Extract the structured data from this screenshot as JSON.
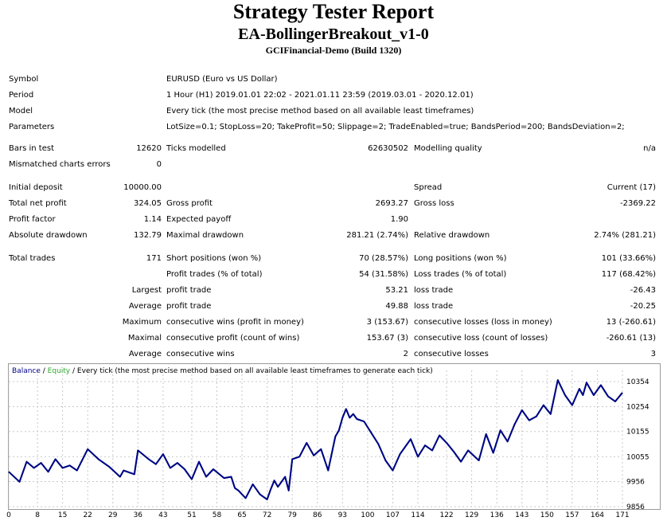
{
  "report": {
    "title": "Strategy Tester Report",
    "subtitle": "EA-BollingerBreakout_v1-0",
    "server": "GCIFinancial-Demo (Build 1320)"
  },
  "info": {
    "symbol_label": "Symbol",
    "symbol_value": "EURUSD (Euro vs US Dollar)",
    "period_label": "Period",
    "period_value": "1 Hour (H1) 2019.01.01 22:02 - 2021.01.11 23:59 (2019.03.01 - 2020.12.01)",
    "model_label": "Model",
    "model_value": "Every tick (the most precise method based on all available least timeframes)",
    "parameters_label": "Parameters",
    "parameters_value": "LotSize=0.1; StopLoss=20; TakeProfit=50; Slippage=2; TradeEnabled=true; BandsPeriod=200; BandsDeviation=2;"
  },
  "stats": {
    "bars_label": "Bars in test",
    "bars_value": "12620",
    "ticks_label": "Ticks modelled",
    "ticks_value": "62630502",
    "quality_label": "Modelling quality",
    "quality_value": "n/a",
    "mismatch_label": "Mismatched charts errors",
    "mismatch_value": "0",
    "deposit_label": "Initial deposit",
    "deposit_value": "10000.00",
    "spread_label": "Spread",
    "spread_value": "Current (17)",
    "net_label": "Total net profit",
    "net_value": "324.05",
    "gross_profit_label": "Gross profit",
    "gross_profit_value": "2693.27",
    "gross_loss_label": "Gross loss",
    "gross_loss_value": "-2369.22",
    "pf_label": "Profit factor",
    "pf_value": "1.14",
    "payoff_label": "Expected payoff",
    "payoff_value": "1.90",
    "abs_dd_label": "Absolute drawdown",
    "abs_dd_value": "132.79",
    "max_dd_label": "Maximal drawdown",
    "max_dd_value": "281.21 (2.74%)",
    "rel_dd_label": "Relative drawdown",
    "rel_dd_value": "2.74% (281.21)",
    "trades_label": "Total trades",
    "trades_value": "171",
    "short_label": "Short positions (won %)",
    "short_value": "70 (28.57%)",
    "long_label": "Long positions (won %)",
    "long_value": "101 (33.66%)",
    "profit_trades_label": "Profit trades (% of total)",
    "profit_trades_value": "54 (31.58%)",
    "loss_trades_label": "Loss trades (% of total)",
    "loss_trades_value": "117 (68.42%)",
    "largest_label": "Largest",
    "largest_profit_label": "profit trade",
    "largest_profit_value": "53.21",
    "largest_loss_label": "loss trade",
    "largest_loss_value": "-26.43",
    "average_label": "Average",
    "average_profit_label": "profit trade",
    "average_profit_value": "49.88",
    "average_loss_label": "loss trade",
    "average_loss_value": "-20.25",
    "maximum_label": "Maximum",
    "max_wins_label": "consecutive wins (profit in money)",
    "max_wins_value": "3 (153.67)",
    "max_losses_label": "consecutive losses (loss in money)",
    "max_losses_value": "13 (-260.61)",
    "maximal_label": "Maximal",
    "maximal_profit_label": "consecutive profit (count of wins)",
    "maximal_profit_value": "153.67 (3)",
    "maximal_loss_label": "consecutive loss (count of losses)",
    "maximal_loss_value": "-260.61 (13)",
    "avg2_label": "Average",
    "avg_wins_label": "consecutive wins",
    "avg_wins_value": "2",
    "avg_losses_label": "consecutive losses",
    "avg_losses_value": "3"
  },
  "chart_data": {
    "type": "line",
    "legend": {
      "balance": "Balance",
      "sep1": " / ",
      "equity": "Equity",
      "sep2": " / ",
      "description": "Every tick (the most precise method based on all available least timeframes to generate each tick)"
    },
    "series": [
      {
        "name": "Balance",
        "color": "#00008b",
        "x": [
          0,
          3,
          5,
          7,
          9,
          11,
          13,
          15,
          17,
          19,
          22,
          25,
          28,
          31,
          32,
          35,
          36,
          39,
          41,
          43,
          45,
          47,
          49,
          51,
          53,
          55,
          57,
          60,
          62,
          63,
          64,
          65,
          66,
          68,
          70,
          72,
          73,
          74,
          75,
          77,
          78,
          79,
          81,
          83,
          85,
          87,
          89,
          91,
          92,
          93,
          94,
          95,
          96,
          97,
          99,
          101,
          103,
          105,
          107,
          109,
          112,
          114,
          116,
          118,
          120,
          122,
          124,
          126,
          128,
          131,
          133,
          135,
          137,
          139,
          141,
          143,
          145,
          147,
          149,
          151,
          153,
          155,
          157,
          159,
          160,
          161,
          163,
          165,
          167,
          169,
          171
        ],
        "values": [
          9995,
          9955,
          10035,
          10010,
          10030,
          9995,
          10045,
          10010,
          10020,
          10000,
          10085,
          10045,
          10015,
          9975,
          10000,
          9985,
          10080,
          10045,
          10025,
          10065,
          10010,
          10030,
          10005,
          9965,
          10035,
          9975,
          10005,
          9970,
          9975,
          9930,
          9920,
          9905,
          9890,
          9945,
          9905,
          9885,
          9925,
          9960,
          9935,
          9975,
          9920,
          10045,
          10055,
          10110,
          10060,
          10085,
          10000,
          10135,
          10160,
          10210,
          10245,
          10210,
          10225,
          10205,
          10195,
          10150,
          10105,
          10040,
          10000,
          10065,
          10125,
          10055,
          10100,
          10080,
          10140,
          10110,
          10075,
          10035,
          10080,
          10040,
          10145,
          10070,
          10160,
          10115,
          10185,
          10240,
          10200,
          10215,
          10260,
          10225,
          10360,
          10300,
          10260,
          10325,
          10300,
          10350,
          10300,
          10340,
          10295,
          10275,
          10310
        ]
      },
      {
        "name": "Equity",
        "color": "#2ea82e",
        "x": [
          0,
          3,
          5,
          7,
          9,
          11,
          13,
          15,
          17,
          19,
          22,
          25,
          28,
          31,
          32,
          35,
          36,
          39,
          41,
          43,
          45,
          47,
          49,
          51,
          53,
          55,
          57,
          60,
          62,
          63,
          64,
          65,
          66,
          68,
          70,
          72,
          73,
          74,
          75,
          77,
          78,
          79,
          81,
          83,
          85,
          87,
          89,
          91,
          92,
          93,
          94,
          95,
          96,
          97,
          99,
          101,
          103,
          105,
          107,
          109,
          112,
          114,
          116,
          118,
          120,
          122,
          124,
          126,
          128,
          131,
          133,
          135,
          137,
          139,
          141,
          143,
          145,
          147,
          149,
          151,
          153,
          155,
          157,
          159,
          160,
          161,
          163,
          165,
          167,
          169,
          171
        ],
        "values": [
          9995,
          9955,
          10035,
          10010,
          10030,
          9995,
          10045,
          10010,
          10020,
          10000,
          10085,
          10045,
          10015,
          9975,
          10000,
          9985,
          10080,
          10045,
          10025,
          10065,
          10010,
          10030,
          10005,
          9965,
          10035,
          9975,
          10005,
          9970,
          9975,
          9930,
          9920,
          9905,
          9890,
          9945,
          9905,
          9885,
          9925,
          9960,
          9935,
          9975,
          9920,
          10045,
          10055,
          10110,
          10060,
          10085,
          10000,
          10135,
          10160,
          10210,
          10245,
          10210,
          10225,
          10205,
          10195,
          10150,
          10105,
          10040,
          10000,
          10065,
          10125,
          10055,
          10100,
          10080,
          10140,
          10110,
          10075,
          10035,
          10080,
          10040,
          10145,
          10070,
          10160,
          10115,
          10185,
          10240,
          10200,
          10215,
          10260,
          10225,
          10360,
          10300,
          10260,
          10325,
          10300,
          10350,
          10300,
          10340,
          10295,
          10275,
          10310
        ]
      }
    ],
    "xticks": [
      "0",
      "8",
      "15",
      "22",
      "29",
      "36",
      "43",
      "51",
      "58",
      "65",
      "72",
      "79",
      "86",
      "93",
      "100",
      "107",
      "114",
      "122",
      "129",
      "136",
      "143",
      "150",
      "157",
      "164",
      "171"
    ],
    "yticks": [
      "10354",
      "10254",
      "10155",
      "10055",
      "9956",
      "9856"
    ],
    "xlim": [
      0,
      171
    ],
    "ylim": [
      9856,
      10354
    ],
    "grid": true
  }
}
